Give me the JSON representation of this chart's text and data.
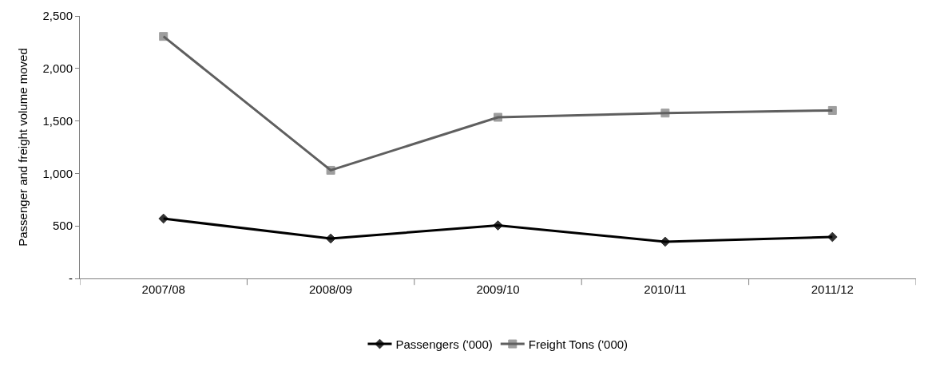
{
  "chart_data": {
    "type": "line",
    "ylabel": "Passenger and freight volume moved",
    "categories": [
      "2007/08",
      "2008/09",
      "2009/10",
      "2010/11",
      "2011/12"
    ],
    "series": [
      {
        "name": "Passengers ('000)",
        "color": "#000000",
        "marker": "diamond",
        "values": [
          570,
          380,
          505,
          350,
          395
        ]
      },
      {
        "name": "Freight Tons ('000)",
        "color": "#5f5f5f",
        "marker": "square",
        "values": [
          2305,
          1030,
          1535,
          1575,
          1600
        ]
      }
    ],
    "ylim": [
      0,
      2500
    ],
    "yticks": [
      {
        "value": 0,
        "label": "-"
      },
      {
        "value": 500,
        "label": "500"
      },
      {
        "value": 1000,
        "label": "1,000"
      },
      {
        "value": 1500,
        "label": "1,500"
      },
      {
        "value": 2000,
        "label": "2,000"
      },
      {
        "value": 2500,
        "label": "2,500"
      }
    ],
    "legend": "bottom",
    "line_style": "solid"
  }
}
